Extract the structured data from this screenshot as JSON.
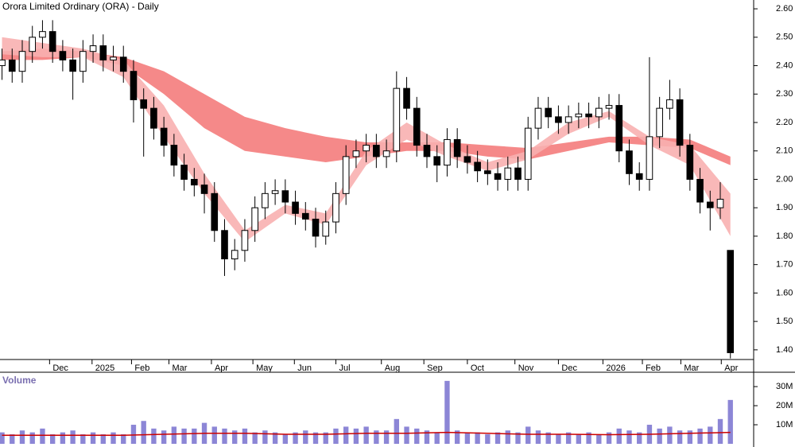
{
  "chart_data": [
    {
      "type": "candlestick",
      "title": "Orora Limited Ordinary (ORA) - Daily",
      "x": [
        0,
        1,
        2,
        3,
        4,
        5,
        6,
        7,
        8,
        9,
        10,
        11,
        12,
        13,
        14,
        15,
        16,
        17,
        18,
        19,
        20,
        21,
        22,
        23,
        24,
        25,
        26,
        27,
        28,
        29,
        30,
        31,
        32,
        33,
        34,
        35,
        36,
        37,
        38,
        39,
        40,
        41,
        42,
        43,
        44,
        45,
        46,
        47,
        48,
        49,
        50,
        51,
        52,
        53,
        54,
        55,
        56,
        57,
        58,
        59,
        60,
        61,
        62,
        63,
        64,
        65,
        66,
        67,
        68,
        69,
        70,
        71,
        72
      ],
      "open": [
        2.4,
        2.42,
        2.38,
        2.45,
        2.5,
        2.52,
        2.45,
        2.42,
        2.38,
        2.45,
        2.47,
        2.42,
        2.43,
        2.38,
        2.28,
        2.25,
        2.18,
        2.12,
        2.05,
        2.0,
        1.98,
        1.95,
        1.82,
        1.72,
        1.75,
        1.82,
        1.9,
        1.95,
        1.96,
        1.92,
        1.88,
        1.86,
        1.8,
        1.85,
        1.95,
        2.08,
        2.1,
        2.12,
        2.08,
        2.1,
        2.32,
        2.25,
        2.12,
        2.08,
        2.05,
        2.14,
        2.08,
        2.06,
        2.03,
        2.02,
        2.0,
        2.04,
        2.0,
        2.18,
        2.25,
        2.22,
        2.2,
        2.22,
        2.23,
        2.22,
        2.25,
        2.26,
        2.1,
        2.02,
        2.0,
        2.15,
        2.25,
        2.28,
        2.12,
        2.0,
        1.92,
        1.9,
        1.75
      ],
      "high": [
        2.46,
        2.46,
        2.49,
        2.54,
        2.56,
        2.56,
        2.49,
        2.46,
        2.49,
        2.51,
        2.51,
        2.47,
        2.47,
        2.42,
        2.32,
        2.29,
        2.22,
        2.16,
        2.09,
        2.04,
        2.02,
        1.99,
        1.86,
        1.79,
        1.86,
        1.94,
        1.99,
        2.0,
        2.0,
        1.96,
        1.92,
        1.9,
        1.89,
        1.99,
        2.12,
        2.14,
        2.16,
        2.16,
        2.14,
        2.38,
        2.36,
        2.29,
        2.16,
        2.12,
        2.18,
        2.18,
        2.12,
        2.1,
        2.07,
        2.06,
        2.08,
        2.08,
        2.22,
        2.29,
        2.29,
        2.26,
        2.26,
        2.27,
        2.27,
        2.29,
        2.3,
        2.3,
        2.14,
        2.06,
        2.43,
        2.29,
        2.35,
        2.32,
        2.16,
        2.04,
        1.96,
        1.99,
        1.75
      ],
      "low": [
        2.35,
        2.34,
        2.34,
        2.41,
        2.46,
        2.41,
        2.38,
        2.28,
        2.34,
        2.41,
        2.38,
        2.38,
        2.34,
        2.2,
        2.08,
        2.14,
        2.08,
        2.01,
        1.96,
        1.94,
        1.88,
        1.78,
        1.66,
        1.68,
        1.71,
        1.78,
        1.86,
        1.91,
        1.88,
        1.84,
        1.82,
        1.76,
        1.77,
        1.81,
        1.91,
        2.04,
        2.06,
        2.04,
        2.04,
        2.06,
        2.21,
        2.08,
        2.04,
        1.99,
        2.01,
        2.04,
        2.02,
        1.99,
        1.98,
        1.96,
        1.96,
        1.96,
        1.96,
        2.14,
        2.18,
        2.16,
        2.16,
        2.18,
        2.18,
        2.18,
        2.21,
        2.06,
        1.98,
        1.96,
        1.96,
        2.11,
        2.21,
        2.08,
        1.96,
        1.88,
        1.82,
        1.86,
        1.37
      ],
      "close": [
        2.42,
        2.38,
        2.45,
        2.5,
        2.52,
        2.45,
        2.42,
        2.38,
        2.45,
        2.47,
        2.42,
        2.43,
        2.38,
        2.28,
        2.25,
        2.18,
        2.12,
        2.05,
        2.0,
        1.98,
        1.95,
        1.82,
        1.72,
        1.75,
        1.82,
        1.9,
        1.95,
        1.96,
        1.92,
        1.88,
        1.86,
        1.8,
        1.85,
        1.95,
        2.08,
        2.1,
        2.12,
        2.08,
        2.1,
        2.32,
        2.25,
        2.12,
        2.08,
        2.05,
        2.14,
        2.08,
        2.06,
        2.03,
        2.02,
        2.0,
        2.04,
        2.0,
        2.18,
        2.25,
        2.22,
        2.2,
        2.22,
        2.23,
        2.22,
        2.25,
        2.26,
        2.1,
        2.02,
        2.0,
        2.15,
        2.25,
        2.28,
        2.12,
        2.0,
        1.92,
        1.9,
        1.93,
        1.39
      ],
      "band_x": [
        0,
        4,
        8,
        12,
        16,
        20,
        24,
        28,
        32,
        36,
        40,
        44,
        48,
        52,
        56,
        60,
        64,
        68,
        72
      ],
      "bands": [
        {
          "color": "#f47c7c",
          "upper": [
            2.45,
            2.46,
            2.45,
            2.43,
            2.38,
            2.3,
            2.22,
            2.18,
            2.15,
            2.13,
            2.13,
            2.13,
            2.12,
            2.11,
            2.13,
            2.15,
            2.15,
            2.14,
            2.08
          ],
          "lower": [
            2.42,
            2.42,
            2.43,
            2.4,
            2.3,
            2.18,
            2.1,
            2.08,
            2.06,
            2.08,
            2.1,
            2.1,
            2.08,
            2.07,
            2.1,
            2.13,
            2.12,
            2.11,
            2.05
          ]
        },
        {
          "color": "#f8b0b0",
          "upper": [
            2.5,
            2.48,
            2.46,
            2.42,
            2.26,
            2.02,
            1.82,
            1.91,
            1.88,
            2.1,
            2.2,
            2.12,
            2.06,
            2.1,
            2.2,
            2.24,
            2.15,
            2.12,
            1.95
          ],
          "lower": [
            2.44,
            2.43,
            2.43,
            2.36,
            2.15,
            1.95,
            1.78,
            1.88,
            1.84,
            2.05,
            2.14,
            2.08,
            2.03,
            2.07,
            2.16,
            2.22,
            2.12,
            2.05,
            1.8
          ]
        }
      ],
      "xlim": [
        -0.2,
        74.3
      ],
      "xticks": [
        {
          "value": 4.7,
          "label": "Dec"
        },
        {
          "value": 8.9,
          "label": "2025"
        },
        {
          "value": 12.8,
          "label": "Feb"
        },
        {
          "value": 16.5,
          "label": "Mar"
        },
        {
          "value": 20.7,
          "label": "Apr"
        },
        {
          "value": 24.8,
          "label": "May"
        },
        {
          "value": 28.9,
          "label": "Jun"
        },
        {
          "value": 33.0,
          "label": "Jul"
        },
        {
          "value": 37.5,
          "label": "Aug"
        },
        {
          "value": 41.7,
          "label": "Sep"
        },
        {
          "value": 46.0,
          "label": "Oct"
        },
        {
          "value": 50.7,
          "label": "Nov"
        },
        {
          "value": 55.0,
          "label": "Dec"
        },
        {
          "value": 59.4,
          "label": "2026"
        },
        {
          "value": 63.3,
          "label": "Feb"
        },
        {
          "value": 67.1,
          "label": "Mar"
        },
        {
          "value": 71.1,
          "label": "Apr"
        }
      ],
      "ylim": [
        1.366,
        2.631
      ],
      "yticks": [
        {
          "value": 1.4,
          "label": "1.40"
        },
        {
          "value": 1.5,
          "label": "1.50"
        },
        {
          "value": 1.6,
          "label": "1.60"
        },
        {
          "value": 1.7,
          "label": "1.70"
        },
        {
          "value": 1.8,
          "label": "1.80"
        },
        {
          "value": 1.9,
          "label": "1.90"
        },
        {
          "value": 2.0,
          "label": "2.00"
        },
        {
          "value": 2.1,
          "label": "2.10"
        },
        {
          "value": 2.2,
          "label": "2.20"
        },
        {
          "value": 2.3,
          "label": "2.30"
        },
        {
          "value": 2.4,
          "label": "2.40"
        },
        {
          "value": 2.5,
          "label": "2.50"
        },
        {
          "value": 2.6,
          "label": "2.60"
        }
      ],
      "up_color": "#ffffff",
      "down_color": "#000000"
    },
    {
      "type": "bar",
      "title": "Volume",
      "color": "#8c86d6",
      "values": [
        6000000,
        5000000,
        7000000,
        6000000,
        8000000,
        5000000,
        6000000,
        7000000,
        5000000,
        6000000,
        5000000,
        6000000,
        5000000,
        10000000,
        12000000,
        8000000,
        7000000,
        9000000,
        8000000,
        8000000,
        11000000,
        9000000,
        8000000,
        7000000,
        8000000,
        6000000,
        7000000,
        6000000,
        5000000,
        6000000,
        7000000,
        6000000,
        6000000,
        8000000,
        9000000,
        8000000,
        9000000,
        7000000,
        7000000,
        13000000,
        9000000,
        8000000,
        7000000,
        6000000,
        33000000,
        7000000,
        6000000,
        6000000,
        5000000,
        6000000,
        7000000,
        6000000,
        9000000,
        7000000,
        6000000,
        5000000,
        6000000,
        5000000,
        6000000,
        5000000,
        6000000,
        8000000,
        7000000,
        6000000,
        10000000,
        8000000,
        9000000,
        7000000,
        7000000,
        8000000,
        9000000,
        13000000,
        23000000
      ],
      "ma_color": "#cc0000",
      "ma": [
        4500000,
        4500000,
        4500000,
        4500000,
        5000000,
        5500000,
        5500000,
        5000000,
        5000000,
        5500000,
        5500000,
        6000000,
        5500000,
        5000000,
        5000000,
        4800000,
        5000000,
        5500000,
        6000000
      ],
      "ylim": [
        0,
        36700000
      ],
      "yticks": [
        {
          "value": 10000000,
          "label": "10M"
        },
        {
          "value": 20000000,
          "label": "20M"
        },
        {
          "value": 30000000,
          "label": "30M"
        }
      ]
    }
  ]
}
